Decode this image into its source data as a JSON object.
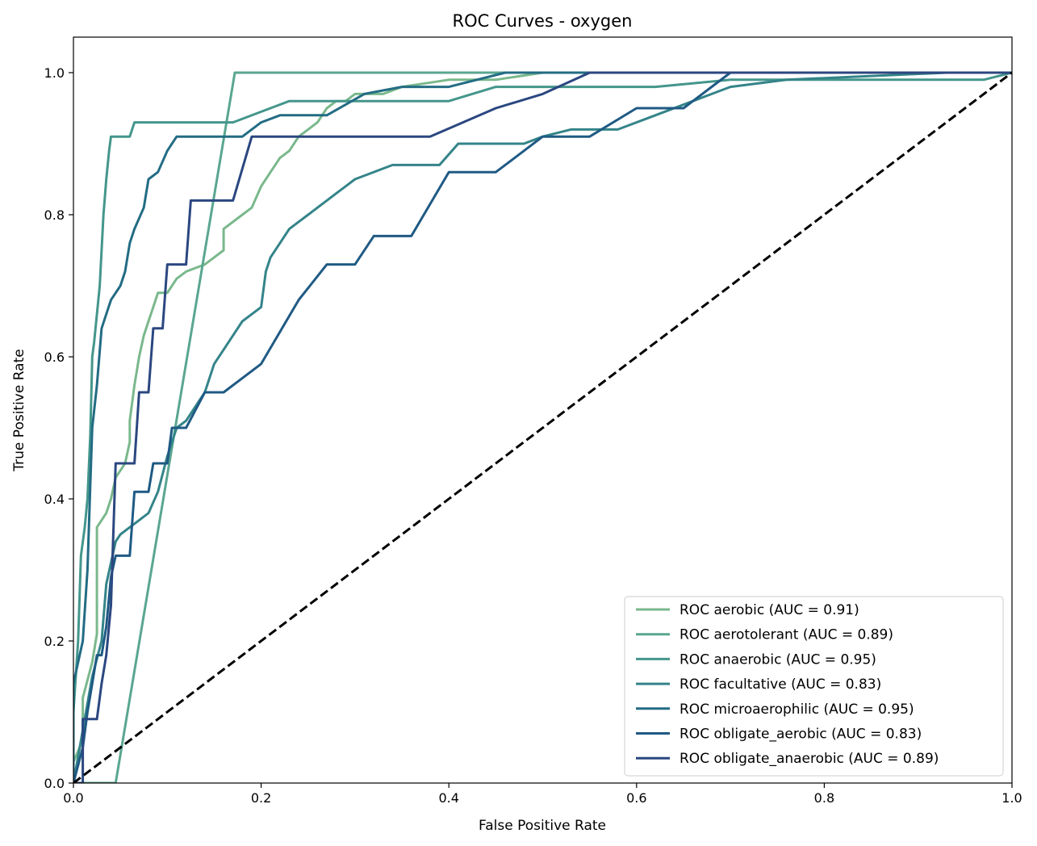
{
  "chart_data": {
    "type": "line",
    "title": "ROC Curves - oxygen",
    "xlabel": "False Positive Rate",
    "ylabel": "True Positive Rate",
    "xlim": [
      0.0,
      1.0
    ],
    "ylim": [
      0.0,
      1.05
    ],
    "xticks": [
      "0.0",
      "0.2",
      "0.4",
      "0.6",
      "0.8",
      "1.0"
    ],
    "yticks": [
      "0.0",
      "0.2",
      "0.4",
      "0.6",
      "0.8",
      "1.0"
    ],
    "grid": false,
    "legend_position": "lower-right",
    "series": [
      {
        "name": "ROC aerobic (AUC = 0.91)",
        "color": "#7ab88c",
        "points": [
          [
            0,
            0
          ],
          [
            0,
            0.03
          ],
          [
            0.01,
            0.06
          ],
          [
            0.01,
            0.12
          ],
          [
            0.02,
            0.17
          ],
          [
            0.025,
            0.21
          ],
          [
            0.025,
            0.36
          ],
          [
            0.03,
            0.37
          ],
          [
            0.035,
            0.38
          ],
          [
            0.04,
            0.4
          ],
          [
            0.045,
            0.43
          ],
          [
            0.05,
            0.44
          ],
          [
            0.055,
            0.45
          ],
          [
            0.06,
            0.48
          ],
          [
            0.06,
            0.51
          ],
          [
            0.065,
            0.56
          ],
          [
            0.07,
            0.6
          ],
          [
            0.075,
            0.63
          ],
          [
            0.08,
            0.65
          ],
          [
            0.085,
            0.67
          ],
          [
            0.09,
            0.69
          ],
          [
            0.1,
            0.69
          ],
          [
            0.11,
            0.71
          ],
          [
            0.12,
            0.72
          ],
          [
            0.14,
            0.73
          ],
          [
            0.16,
            0.75
          ],
          [
            0.16,
            0.78
          ],
          [
            0.18,
            0.8
          ],
          [
            0.19,
            0.81
          ],
          [
            0.2,
            0.84
          ],
          [
            0.21,
            0.86
          ],
          [
            0.22,
            0.88
          ],
          [
            0.23,
            0.89
          ],
          [
            0.24,
            0.91
          ],
          [
            0.25,
            0.92
          ],
          [
            0.26,
            0.93
          ],
          [
            0.27,
            0.95
          ],
          [
            0.28,
            0.96
          ],
          [
            0.29,
            0.96
          ],
          [
            0.3,
            0.97
          ],
          [
            0.33,
            0.97
          ],
          [
            0.35,
            0.98
          ],
          [
            0.4,
            0.99
          ],
          [
            0.45,
            0.99
          ],
          [
            0.5,
            1.0
          ],
          [
            1.0,
            1.0
          ]
        ]
      },
      {
        "name": "ROC aerotolerant (AUC = 0.89)",
        "color": "#5aa690",
        "points": [
          [
            0,
            0
          ],
          [
            0.045,
            0
          ],
          [
            0.172,
            1.0
          ],
          [
            1.0,
            1.0
          ]
        ]
      },
      {
        "name": "ROC anaerobic (AUC = 0.95)",
        "color": "#44968c",
        "points": [
          [
            0,
            0
          ],
          [
            0,
            0.1
          ],
          [
            0.005,
            0.2
          ],
          [
            0.008,
            0.32
          ],
          [
            0.012,
            0.36
          ],
          [
            0.015,
            0.4
          ],
          [
            0.018,
            0.49
          ],
          [
            0.02,
            0.6
          ],
          [
            0.022,
            0.62
          ],
          [
            0.025,
            0.66
          ],
          [
            0.028,
            0.7
          ],
          [
            0.03,
            0.75
          ],
          [
            0.032,
            0.8
          ],
          [
            0.035,
            0.85
          ],
          [
            0.038,
            0.89
          ],
          [
            0.04,
            0.91
          ],
          [
            0.06,
            0.91
          ],
          [
            0.065,
            0.93
          ],
          [
            0.17,
            0.93
          ],
          [
            0.21,
            0.95
          ],
          [
            0.23,
            0.96
          ],
          [
            0.4,
            0.96
          ],
          [
            0.45,
            0.98
          ],
          [
            0.62,
            0.98
          ],
          [
            0.7,
            0.99
          ],
          [
            0.97,
            0.99
          ],
          [
            1.0,
            1.0
          ]
        ]
      },
      {
        "name": "ROC facultative (AUC = 0.83)",
        "color": "#348489",
        "points": [
          [
            0,
            0
          ],
          [
            0.02,
            0.15
          ],
          [
            0.03,
            0.2
          ],
          [
            0.035,
            0.28
          ],
          [
            0.04,
            0.31
          ],
          [
            0.045,
            0.34
          ],
          [
            0.05,
            0.35
          ],
          [
            0.06,
            0.36
          ],
          [
            0.07,
            0.37
          ],
          [
            0.08,
            0.38
          ],
          [
            0.09,
            0.41
          ],
          [
            0.1,
            0.46
          ],
          [
            0.11,
            0.5
          ],
          [
            0.12,
            0.51
          ],
          [
            0.13,
            0.53
          ],
          [
            0.14,
            0.55
          ],
          [
            0.15,
            0.59
          ],
          [
            0.16,
            0.61
          ],
          [
            0.17,
            0.63
          ],
          [
            0.18,
            0.65
          ],
          [
            0.19,
            0.66
          ],
          [
            0.2,
            0.67
          ],
          [
            0.205,
            0.72
          ],
          [
            0.21,
            0.74
          ],
          [
            0.22,
            0.76
          ],
          [
            0.23,
            0.78
          ],
          [
            0.24,
            0.79
          ],
          [
            0.25,
            0.8
          ],
          [
            0.26,
            0.81
          ],
          [
            0.27,
            0.82
          ],
          [
            0.28,
            0.83
          ],
          [
            0.29,
            0.84
          ],
          [
            0.3,
            0.85
          ],
          [
            0.34,
            0.87
          ],
          [
            0.39,
            0.87
          ],
          [
            0.41,
            0.9
          ],
          [
            0.48,
            0.9
          ],
          [
            0.5,
            0.91
          ],
          [
            0.53,
            0.92
          ],
          [
            0.58,
            0.92
          ],
          [
            0.62,
            0.94
          ],
          [
            0.66,
            0.96
          ],
          [
            0.7,
            0.98
          ],
          [
            0.76,
            0.99
          ],
          [
            0.93,
            1.0
          ],
          [
            1.0,
            1.0
          ]
        ]
      },
      {
        "name": "ROC microaerophilic (AUC = 0.95)",
        "color": "#236c84",
        "points": [
          [
            0,
            0
          ],
          [
            0,
            0.14
          ],
          [
            0.01,
            0.2
          ],
          [
            0.015,
            0.3
          ],
          [
            0.018,
            0.42
          ],
          [
            0.02,
            0.5
          ],
          [
            0.025,
            0.56
          ],
          [
            0.03,
            0.64
          ],
          [
            0.035,
            0.66
          ],
          [
            0.04,
            0.68
          ],
          [
            0.05,
            0.7
          ],
          [
            0.055,
            0.72
          ],
          [
            0.06,
            0.76
          ],
          [
            0.065,
            0.78
          ],
          [
            0.075,
            0.81
          ],
          [
            0.08,
            0.85
          ],
          [
            0.09,
            0.86
          ],
          [
            0.1,
            0.89
          ],
          [
            0.11,
            0.91
          ],
          [
            0.18,
            0.91
          ],
          [
            0.2,
            0.93
          ],
          [
            0.22,
            0.94
          ],
          [
            0.27,
            0.94
          ],
          [
            0.31,
            0.97
          ],
          [
            0.35,
            0.98
          ],
          [
            0.4,
            0.98
          ],
          [
            0.46,
            1.0
          ],
          [
            1.0,
            1.0
          ]
        ]
      },
      {
        "name": "ROC obligate_aerobic (AUC = 0.83)",
        "color": "#1f5a84",
        "points": [
          [
            0,
            0
          ],
          [
            0.01,
            0.05
          ],
          [
            0.015,
            0.1
          ],
          [
            0.02,
            0.14
          ],
          [
            0.025,
            0.18
          ],
          [
            0.03,
            0.18
          ],
          [
            0.035,
            0.22
          ],
          [
            0.04,
            0.29
          ],
          [
            0.045,
            0.32
          ],
          [
            0.06,
            0.32
          ],
          [
            0.065,
            0.41
          ],
          [
            0.08,
            0.41
          ],
          [
            0.085,
            0.45
          ],
          [
            0.1,
            0.45
          ],
          [
            0.105,
            0.5
          ],
          [
            0.12,
            0.5
          ],
          [
            0.14,
            0.55
          ],
          [
            0.16,
            0.55
          ],
          [
            0.2,
            0.59
          ],
          [
            0.24,
            0.68
          ],
          [
            0.27,
            0.73
          ],
          [
            0.3,
            0.73
          ],
          [
            0.32,
            0.77
          ],
          [
            0.36,
            0.77
          ],
          [
            0.4,
            0.86
          ],
          [
            0.45,
            0.86
          ],
          [
            0.5,
            0.91
          ],
          [
            0.55,
            0.91
          ],
          [
            0.6,
            0.95
          ],
          [
            0.65,
            0.95
          ],
          [
            0.7,
            1.0
          ],
          [
            1.0,
            1.0
          ]
        ]
      },
      {
        "name": "ROC obligate_anaerobic (AUC = 0.89)",
        "color": "#2b4780",
        "points": [
          [
            0,
            0
          ],
          [
            0.01,
            0
          ],
          [
            0.01,
            0.09
          ],
          [
            0.025,
            0.09
          ],
          [
            0.03,
            0.14
          ],
          [
            0.035,
            0.18
          ],
          [
            0.04,
            0.25
          ],
          [
            0.045,
            0.45
          ],
          [
            0.065,
            0.45
          ],
          [
            0.07,
            0.55
          ],
          [
            0.08,
            0.55
          ],
          [
            0.085,
            0.64
          ],
          [
            0.095,
            0.64
          ],
          [
            0.1,
            0.73
          ],
          [
            0.12,
            0.73
          ],
          [
            0.125,
            0.82
          ],
          [
            0.17,
            0.82
          ],
          [
            0.19,
            0.91
          ],
          [
            0.38,
            0.91
          ],
          [
            0.45,
            0.95
          ],
          [
            0.5,
            0.97
          ],
          [
            0.55,
            1.0
          ],
          [
            1.0,
            1.0
          ]
        ]
      }
    ],
    "reference_line": {
      "color": "#000000",
      "points": [
        [
          0,
          0
        ],
        [
          1,
          1
        ]
      ]
    }
  }
}
